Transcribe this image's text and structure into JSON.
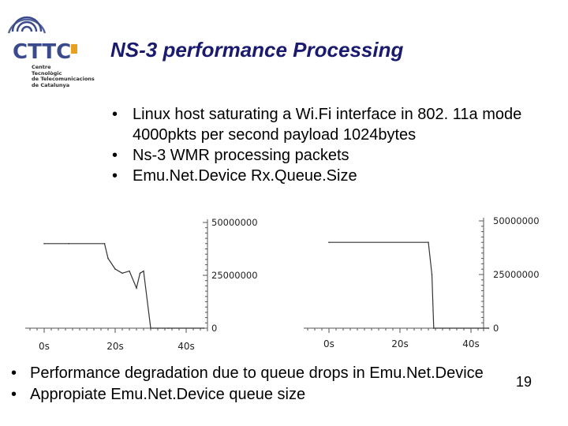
{
  "slide": {
    "title": "NS-3 performance Processing",
    "page_number": "19"
  },
  "logo": {
    "name": "CTTC",
    "lines": [
      "Centre",
      "Tecnològic",
      "de Telecomunicacions",
      "de Catalunya"
    ]
  },
  "bullets_top": [
    "Linux host saturating a Wi.Fi interface in 802. 11a mode 4000pkts per second payload 1024bytes",
    "Ns-3 WMR processing packets",
    "Emu.Net.Device Rx.Queue.Size"
  ],
  "bullets_bottom": [
    "Performance degradation due to queue drops in Emu.Net.Device",
    "Appropiate Emu.Net.Device queue size"
  ],
  "bullet_symbol": "•",
  "colors": {
    "title": "#1a1a6e",
    "logo_blue": "#3a4a8c",
    "logo_orange": "#e8a020"
  },
  "chart_data": [
    {
      "type": "line",
      "x_tick_labels": [
        "0s",
        "20s",
        "40s"
      ],
      "y_tick_labels": [
        "50000000",
        "25000000",
        "0"
      ],
      "ylim": [
        0,
        50000000
      ],
      "series": [
        {
          "points": [
            [
              0,
              40000000
            ],
            [
              7,
              40000000
            ],
            [
              17,
              40000000
            ],
            [
              18,
              33000000
            ],
            [
              20,
              28000000
            ],
            [
              22,
              26000000
            ],
            [
              24,
              27000000
            ],
            [
              26,
              19000000
            ],
            [
              27,
              26000000
            ],
            [
              28,
              27000000
            ],
            [
              30,
              0
            ],
            [
              35,
              0
            ],
            [
              45,
              0
            ]
          ]
        }
      ]
    },
    {
      "type": "line",
      "x_tick_labels": [
        "0s",
        "20s",
        "40s"
      ],
      "y_tick_labels": [
        "50000000",
        "25000000",
        "0"
      ],
      "ylim": [
        0,
        50000000
      ],
      "series": [
        {
          "points": [
            [
              0,
              40000000
            ],
            [
              28,
              40000000
            ],
            [
              29,
              25000000
            ],
            [
              29.5,
              0
            ],
            [
              45,
              0
            ]
          ]
        }
      ]
    }
  ]
}
